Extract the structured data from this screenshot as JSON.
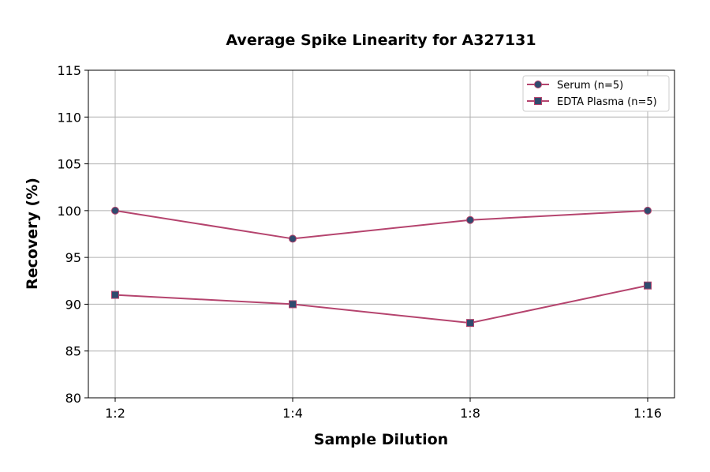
{
  "chart_data": {
    "type": "line",
    "title": "Average Spike Linearity for A327131",
    "xlabel": "Sample Dilution",
    "ylabel": "Recovery (%)",
    "categories": [
      "1:2",
      "1:4",
      "1:8",
      "1:16"
    ],
    "ylim": [
      80,
      115
    ],
    "yticks": [
      80,
      85,
      90,
      95,
      100,
      105,
      110,
      115
    ],
    "grid": true,
    "legend_position": "top-right",
    "series": [
      {
        "name": "Serum (n=5)",
        "values": [
          100,
          97,
          99,
          100
        ],
        "marker": "circle"
      },
      {
        "name": "EDTA Plasma (n=5)",
        "values": [
          91,
          90,
          88,
          92
        ],
        "marker": "square"
      }
    ],
    "colors": {
      "line": "#b5446e",
      "marker": "#2f4b6e"
    }
  }
}
